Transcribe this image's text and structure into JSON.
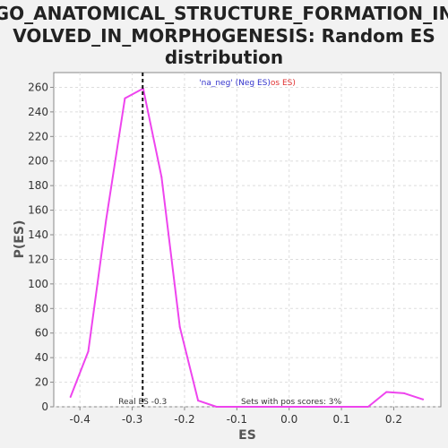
{
  "chart_data": {
    "type": "line",
    "title_lines": [
      "GO_ANATOMICAL_STRUCTURE_FORMATION_IN",
      "VOLVED_IN_MORPHOGENESIS: Random ES",
      "distribution"
    ],
    "xlabel": "ES",
    "ylabel": "P(ES)",
    "xlim": [
      -0.45,
      0.29
    ],
    "ylim": [
      0,
      272
    ],
    "xticks": [
      -0.4,
      -0.3,
      -0.2,
      -0.1,
      0.0,
      0.1,
      0.2
    ],
    "xtick_labels": [
      "-0.4",
      "-0.3",
      "-0.2",
      "-0.1",
      "0.0",
      "0.1",
      "0.2"
    ],
    "yticks": [
      0,
      20,
      40,
      60,
      80,
      100,
      120,
      140,
      160,
      180,
      200,
      220,
      240,
      260
    ],
    "ytick_labels": [
      "0",
      "20",
      "40",
      "60",
      "80",
      "100",
      "120",
      "140",
      "160",
      "180",
      "200",
      "220",
      "240",
      "260"
    ],
    "grid": true,
    "legend": {
      "neg_text": "'na_neg' (Neg ES)",
      "neg_color": "#3333cc",
      "pos_text": "os ES)",
      "pos_color": "#e03030",
      "placement": "top-center"
    },
    "series": [
      {
        "color": "#ee44ee",
        "x": [
          -0.418,
          -0.384,
          -0.35,
          -0.314,
          -0.279,
          -0.244,
          -0.209,
          -0.174,
          -0.139,
          -0.104,
          -0.07,
          -0.035,
          0.0,
          0.035,
          0.07,
          0.104,
          0.151,
          0.186,
          0.22,
          0.256
        ],
        "y": [
          8,
          45,
          152,
          251,
          259,
          187,
          65,
          5,
          0,
          0,
          0,
          0,
          0,
          0,
          0,
          0,
          0,
          12,
          11,
          6
        ]
      }
    ],
    "real_es": {
      "value": -0.28,
      "label": "Real ES -0.3",
      "color": "#111111"
    },
    "pos_scores_text": "Sets with pos scores: 3%"
  }
}
